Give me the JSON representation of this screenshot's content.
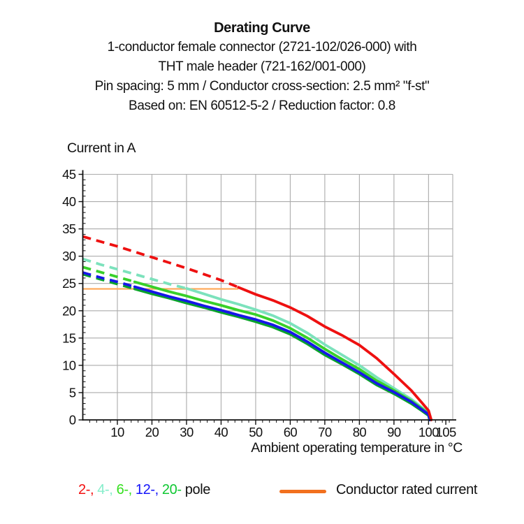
{
  "header": {
    "title": "Derating Curve",
    "line2": "1-conductor female connector (2721-102/026-000) with",
    "line3": "THT male header (721-162/001-000)",
    "line4": "Pin spacing: 5 mm / Conductor cross-section: 2.5 mm² \"f-st\"",
    "line5": "Based on: EN 60512-5-2 / Reduction factor: 0.8"
  },
  "chart_data": {
    "type": "line",
    "title": "Derating Curve",
    "xlabel": "Ambient operating temperature in °C",
    "ylabel": "Current in A",
    "xlim": [
      0,
      107
    ],
    "ylim": [
      0,
      45
    ],
    "grid": true,
    "x_major_ticks": [
      10,
      20,
      30,
      40,
      50,
      60,
      70,
      80,
      90,
      100,
      105
    ],
    "x_gridlines": [
      10,
      20,
      30,
      40,
      50,
      60,
      70,
      80,
      90,
      100
    ],
    "x_minor_step": 2,
    "y_major_ticks": [
      0,
      5,
      10,
      15,
      20,
      25,
      30,
      35,
      40,
      45
    ],
    "y_minor_step": 1,
    "grid_color": "#ababab",
    "axis_color": "#111111",
    "rated_current": {
      "label": "Conductor rated current",
      "value": 24,
      "x_start": 0,
      "x_end": 45,
      "color": "#ffaa5c"
    },
    "series": [
      {
        "name": "4-pole",
        "color": "#7ce2bc",
        "dash_until_x": 32.5,
        "points": [
          [
            0,
            29.5
          ],
          [
            5,
            28.5
          ],
          [
            10,
            27.6
          ],
          [
            15,
            26.7
          ],
          [
            20,
            25.8
          ],
          [
            25,
            24.9
          ],
          [
            30,
            24.1
          ],
          [
            35,
            23.1
          ],
          [
            40,
            22.1
          ],
          [
            45,
            21.2
          ],
          [
            50,
            20.2
          ],
          [
            55,
            19.1
          ],
          [
            60,
            17.7
          ],
          [
            65,
            15.9
          ],
          [
            70,
            13.8
          ],
          [
            75,
            11.9
          ],
          [
            80,
            10.0
          ],
          [
            85,
            7.8
          ],
          [
            90,
            5.8
          ],
          [
            95,
            3.8
          ],
          [
            98,
            2.3
          ],
          [
            100,
            1.2
          ],
          [
            100.6,
            0
          ]
        ]
      },
      {
        "name": "6-pole",
        "color": "#38d02a",
        "dash_until_x": 19,
        "points": [
          [
            0,
            28.0
          ],
          [
            5,
            27.1
          ],
          [
            10,
            26.2
          ],
          [
            15,
            25.3
          ],
          [
            20,
            24.4
          ],
          [
            25,
            23.5
          ],
          [
            30,
            22.7
          ],
          [
            35,
            21.8
          ],
          [
            40,
            21.0
          ],
          [
            45,
            20.1
          ],
          [
            50,
            19.3
          ],
          [
            55,
            18.2
          ],
          [
            60,
            16.8
          ],
          [
            65,
            15.0
          ],
          [
            70,
            13.0
          ],
          [
            75,
            11.1
          ],
          [
            80,
            9.3
          ],
          [
            85,
            7.2
          ],
          [
            90,
            5.4
          ],
          [
            95,
            3.5
          ],
          [
            98,
            2.1
          ],
          [
            100,
            1.1
          ],
          [
            100.5,
            0
          ]
        ]
      },
      {
        "name": "20-pole",
        "color": "#0aa32b",
        "dash_until_x": 16.5,
        "points": [
          [
            0,
            26.7
          ],
          [
            5,
            25.8
          ],
          [
            10,
            24.9
          ],
          [
            15,
            24.0
          ],
          [
            20,
            23.1
          ],
          [
            25,
            22.3
          ],
          [
            30,
            21.4
          ],
          [
            35,
            20.6
          ],
          [
            40,
            19.7
          ],
          [
            45,
            18.9
          ],
          [
            50,
            18.0
          ],
          [
            55,
            17.0
          ],
          [
            60,
            15.7
          ],
          [
            65,
            13.9
          ],
          [
            70,
            11.9
          ],
          [
            75,
            10.2
          ],
          [
            80,
            8.4
          ],
          [
            85,
            6.4
          ],
          [
            90,
            4.8
          ],
          [
            95,
            3.0
          ],
          [
            98,
            1.7
          ],
          [
            100,
            0.8
          ],
          [
            100.3,
            0
          ]
        ]
      },
      {
        "name": "12-pole",
        "color": "#1616e8",
        "dash_until_x": 17,
        "points": [
          [
            0,
            27.0
          ],
          [
            5,
            26.1
          ],
          [
            10,
            25.3
          ],
          [
            15,
            24.4
          ],
          [
            20,
            23.5
          ],
          [
            25,
            22.6
          ],
          [
            30,
            21.8
          ],
          [
            35,
            20.9
          ],
          [
            40,
            20.1
          ],
          [
            45,
            19.2
          ],
          [
            50,
            18.4
          ],
          [
            55,
            17.4
          ],
          [
            60,
            16.1
          ],
          [
            65,
            14.3
          ],
          [
            70,
            12.3
          ],
          [
            75,
            10.5
          ],
          [
            80,
            8.7
          ],
          [
            85,
            6.7
          ],
          [
            90,
            5.1
          ],
          [
            95,
            3.3
          ],
          [
            98,
            1.9
          ],
          [
            100,
            1.0
          ],
          [
            100.4,
            0
          ]
        ]
      },
      {
        "name": "2-pole",
        "color": "#ee1010",
        "dash_until_x": 45,
        "points": [
          [
            0,
            33.6
          ],
          [
            5,
            32.7
          ],
          [
            10,
            31.8
          ],
          [
            15,
            30.8
          ],
          [
            20,
            29.8
          ],
          [
            25,
            28.8
          ],
          [
            30,
            27.8
          ],
          [
            35,
            26.7
          ],
          [
            40,
            25.6
          ],
          [
            45,
            24.3
          ],
          [
            50,
            23.0
          ],
          [
            55,
            21.9
          ],
          [
            60,
            20.6
          ],
          [
            65,
            19.0
          ],
          [
            70,
            17.1
          ],
          [
            75,
            15.5
          ],
          [
            80,
            13.7
          ],
          [
            85,
            11.3
          ],
          [
            90,
            8.4
          ],
          [
            95,
            5.4
          ],
          [
            98,
            3.2
          ],
          [
            100,
            1.7
          ],
          [
            100.8,
            0
          ]
        ]
      }
    ],
    "legend_position": "bottom"
  },
  "labels": {
    "ylabel": "Current in A",
    "xlabel": "Ambient operating temperature in °C"
  },
  "legend": {
    "pole_items": [
      {
        "label": "2-",
        "color": "#f31111"
      },
      {
        "label": "4-",
        "color": "#86eecb"
      },
      {
        "label": "6-",
        "color": "#35e01f"
      },
      {
        "label": "12-",
        "color": "#1414fa"
      },
      {
        "label": "20-",
        "color": "#0fc832"
      }
    ],
    "separator": ", ",
    "pole_suffix": " pole",
    "rated_label": "Conductor rated current",
    "rated_swatch_color": "#f2701e"
  }
}
